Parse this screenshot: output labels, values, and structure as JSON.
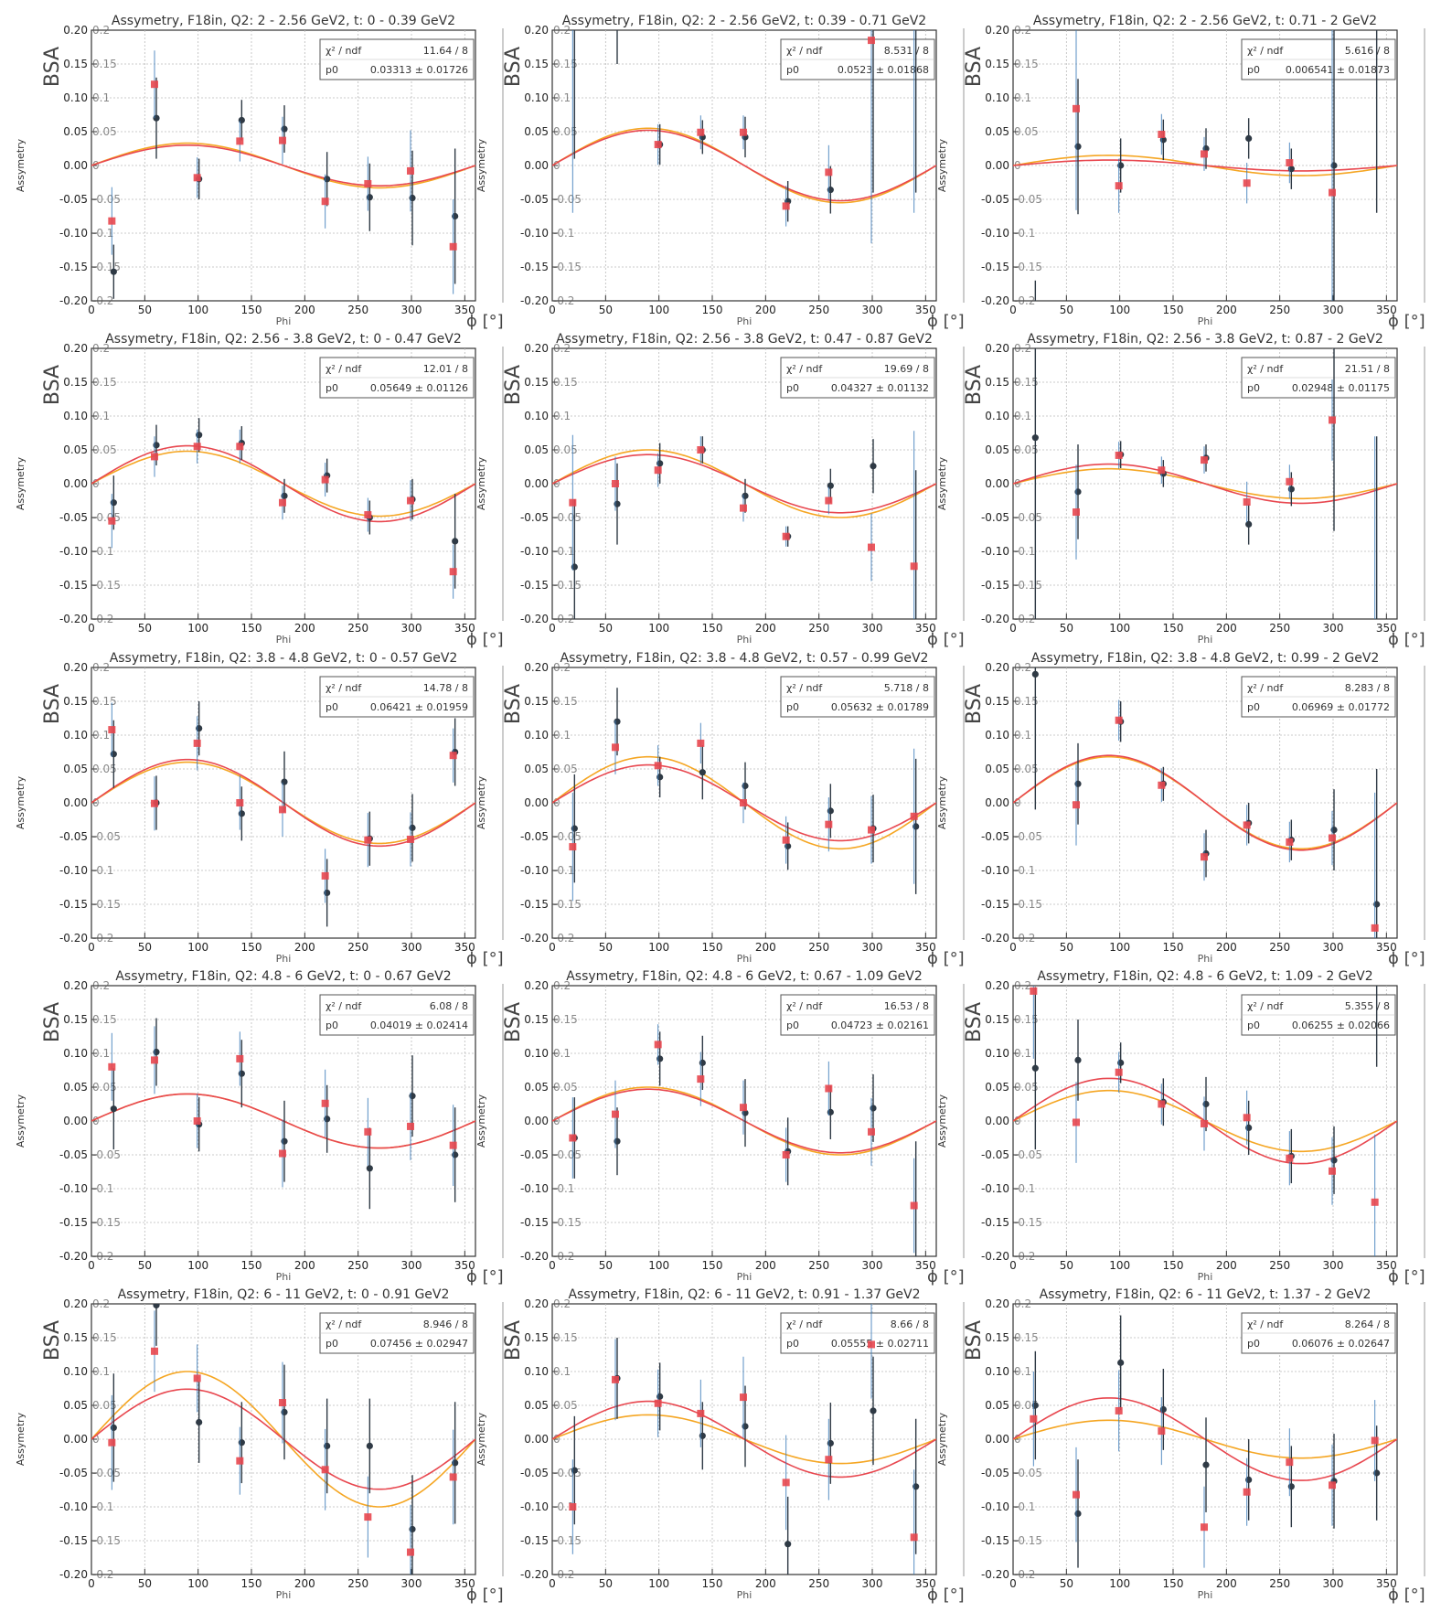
{
  "axis_common": {
    "xlabel": "Phi",
    "ylabel": "Assymetry",
    "overlay_ylabel": "BSA",
    "overlay_xlabel": "ϕ [°]",
    "xlim": [
      0,
      360
    ],
    "ylim": [
      -0.2,
      0.2
    ],
    "xticks": [
      "0",
      "50",
      "100",
      "150",
      "200",
      "250",
      "300",
      "350"
    ],
    "yticks": [
      "-0.20",
      "-0.15",
      "-0.10",
      "-0.05",
      "0.00",
      "0.05",
      "0.10",
      "0.15",
      "0.20"
    ],
    "yticks_overlay": [
      "-0.2",
      "-0.15",
      "-0.1",
      "-0.05",
      "0",
      "0.05",
      "0.1",
      "0.15",
      "0.2"
    ],
    "stats_label_chi": "χ² / ndf",
    "stats_label_p0": "p0",
    "colors": {
      "black_points": "#2f3a45",
      "red_points": "#e8474f",
      "fit_red": "#e8474f",
      "fit_orange": "#f5a623",
      "errbar_blue": "#3a7ab8",
      "grid": "#bbbbbb"
    }
  },
  "chart_data": [
    {
      "type": "scatter",
      "title": "Assymetry, F18in, Q2: 2 - 2.56 GeV2, t: 0 - 0.39 GeV2",
      "chi2": "11.64 / 8",
      "p0": "0.03313 ± 0.01726",
      "fit_amp_red": 0.03,
      "fit_amp_orange": 0.033,
      "x": [
        20,
        60,
        100,
        140,
        180,
        220,
        260,
        300,
        340
      ],
      "black": [
        -0.157,
        0.07,
        -0.02,
        0.067,
        0.054,
        -0.02,
        -0.047,
        -0.048,
        -0.075
      ],
      "black_err": [
        0.04,
        0.06,
        0.03,
        0.03,
        0.035,
        0.04,
        0.05,
        0.07,
        0.1
      ],
      "red": [
        -0.082,
        0.12,
        -0.018,
        0.036,
        0.037,
        -0.053,
        -0.027,
        -0.008,
        -0.12
      ],
      "red_err": [
        0.05,
        0.05,
        0.03,
        0.03,
        0.035,
        0.04,
        0.04,
        0.06,
        0.07
      ]
    },
    {
      "type": "scatter",
      "title": "Assymetry, F18in, Q2: 2 - 2.56 GeV2, t: 0.39 - 0.71 GeV2",
      "chi2": "8.531 / 8",
      "p0": "0.0523 ± 0.01868",
      "fit_amp_red": 0.052,
      "fit_amp_orange": 0.055,
      "x": [
        20,
        60,
        100,
        140,
        180,
        220,
        260,
        300,
        340
      ],
      "black": [
        0.21,
        0.21,
        0.031,
        0.042,
        0.042,
        -0.053,
        -0.036,
        0.21,
        0.21
      ],
      "black_err": [
        0.2,
        0.06,
        0.03,
        0.025,
        0.03,
        0.03,
        0.035,
        0.25,
        0.25
      ],
      "red": [
        0.23,
        0.23,
        0.031,
        0.049,
        0.049,
        -0.06,
        -0.01,
        0.185,
        0.23
      ],
      "red_err": [
        0.3,
        0.0,
        0.03,
        0.025,
        0.025,
        0.03,
        0.04,
        0.3,
        0.3
      ]
    },
    {
      "type": "scatter",
      "title": "Assymetry, F18in, Q2: 2 - 2.56 GeV2, t: 0.71 - 2 GeV2",
      "chi2": "5.616 / 8",
      "p0": "0.006541 ± 0.01873",
      "fit_amp_red": 0.008,
      "fit_amp_orange": 0.015,
      "x": [
        20,
        60,
        100,
        140,
        180,
        220,
        260,
        300,
        340
      ],
      "black": [
        -0.23,
        0.028,
        0.0,
        0.038,
        0.025,
        0.04,
        -0.005,
        0.0,
        0.23
      ],
      "black_err": [
        0.06,
        0.1,
        0.04,
        0.03,
        0.03,
        0.03,
        0.03,
        0.3,
        0.3
      ],
      "red": [
        -0.23,
        0.084,
        -0.03,
        0.046,
        0.017,
        -0.026,
        0.004,
        -0.04,
        -0.23
      ],
      "red_err": [
        0.0,
        0.15,
        0.04,
        0.03,
        0.025,
        0.03,
        0.03,
        0.3,
        0.0
      ]
    },
    {
      "type": "scatter",
      "title": "Assymetry, F18in, Q2: 2.56 - 3.8 GeV2, t: 0 - 0.47 GeV2",
      "chi2": "12.01 / 8",
      "p0": "0.05649 ± 0.01126",
      "fit_amp_red": 0.056,
      "fit_amp_orange": 0.048,
      "x": [
        20,
        60,
        100,
        140,
        180,
        220,
        260,
        300,
        340
      ],
      "black": [
        -0.028,
        0.057,
        0.072,
        0.06,
        -0.018,
        0.012,
        -0.05,
        -0.023,
        -0.085
      ],
      "black_err": [
        0.04,
        0.03,
        0.025,
        0.025,
        0.025,
        0.025,
        0.025,
        0.03,
        0.07
      ],
      "red": [
        -0.055,
        0.04,
        0.055,
        0.055,
        -0.028,
        0.006,
        -0.046,
        -0.025,
        -0.13
      ],
      "red_err": [
        0.04,
        0.03,
        0.025,
        0.025,
        0.025,
        0.025,
        0.025,
        0.03,
        0.04
      ]
    },
    {
      "type": "scatter",
      "title": "Assymetry, F18in, Q2: 2.56 - 3.8 GeV2, t: 0.47 - 0.87 GeV2",
      "chi2": "19.69 / 8",
      "p0": "0.04327 ± 0.01132",
      "fit_amp_red": 0.043,
      "fit_amp_orange": 0.05,
      "x": [
        20,
        60,
        100,
        140,
        180,
        220,
        260,
        300,
        340
      ],
      "black": [
        -0.123,
        -0.03,
        0.03,
        0.05,
        -0.018,
        -0.078,
        -0.003,
        0.026,
        -0.23
      ],
      "black_err": [
        0.1,
        0.06,
        0.03,
        0.02,
        0.025,
        0.015,
        0.025,
        0.04,
        0.25
      ],
      "red": [
        -0.028,
        0.0,
        0.02,
        0.05,
        -0.036,
        -0.078,
        -0.025,
        -0.094,
        -0.122
      ],
      "red_err": [
        0.1,
        0.04,
        0.025,
        0.02,
        0.02,
        0.015,
        0.02,
        0.05,
        0.2
      ]
    },
    {
      "type": "scatter",
      "title": "Assymetry, F18in, Q2: 2.56 - 3.8 GeV2, t: 0.87 - 2 GeV2",
      "chi2": "21.51 / 8",
      "p0": "0.02948 ± 0.01175",
      "fit_amp_red": 0.029,
      "fit_amp_orange": 0.022,
      "x": [
        20,
        60,
        100,
        140,
        180,
        220,
        260,
        300,
        340
      ],
      "black": [
        0.068,
        -0.012,
        0.043,
        0.015,
        0.038,
        -0.06,
        -0.008,
        0.23,
        -0.23
      ],
      "black_err": [
        0.3,
        0.07,
        0.02,
        0.02,
        0.02,
        0.03,
        0.025,
        0.3,
        0.3
      ],
      "red": [
        -0.23,
        -0.042,
        0.042,
        0.02,
        0.035,
        -0.027,
        0.003,
        0.094,
        -0.23
      ],
      "red_err": [
        0.0,
        0.07,
        0.02,
        0.02,
        0.02,
        0.03,
        0.025,
        0.06,
        0.3
      ]
    },
    {
      "type": "scatter",
      "title": "Assymetry, F18in, Q2: 3.8 - 4.8 GeV2, t: 0 - 0.57 GeV2",
      "chi2": "14.78 / 8",
      "p0": "0.06421 ± 0.01959",
      "fit_amp_red": 0.064,
      "fit_amp_orange": 0.06,
      "x": [
        20,
        60,
        100,
        140,
        180,
        220,
        260,
        300,
        340
      ],
      "black": [
        0.072,
        0.0,
        0.11,
        -0.016,
        0.031,
        -0.133,
        -0.053,
        -0.037,
        0.075
      ],
      "black_err": [
        0.05,
        0.04,
        0.04,
        0.04,
        0.045,
        0.05,
        0.04,
        0.05,
        0.05
      ],
      "red": [
        0.108,
        -0.001,
        0.088,
        0.0,
        -0.01,
        -0.108,
        -0.055,
        -0.054,
        0.07
      ],
      "red_err": [
        0.04,
        0.04,
        0.04,
        0.04,
        0.04,
        0.04,
        0.04,
        0.04,
        0.04
      ]
    },
    {
      "type": "scatter",
      "title": "Assymetry, F18in, Q2: 3.8 - 4.8 GeV2, t: 0.57 - 0.99 GeV2",
      "chi2": "5.718 / 8",
      "p0": "0.05632 ± 0.01789",
      "fit_amp_red": 0.056,
      "fit_amp_orange": 0.068,
      "x": [
        20,
        60,
        100,
        140,
        180,
        220,
        260,
        300,
        340
      ],
      "black": [
        -0.038,
        0.12,
        0.038,
        0.045,
        0.025,
        -0.064,
        -0.012,
        -0.038,
        -0.035
      ],
      "black_err": [
        0.08,
        0.05,
        0.03,
        0.04,
        0.035,
        0.035,
        0.04,
        0.05,
        0.1
      ],
      "red": [
        -0.065,
        0.082,
        0.055,
        0.088,
        0.0,
        -0.055,
        -0.032,
        -0.04,
        -0.02
      ],
      "red_err": [
        0.08,
        0.04,
        0.03,
        0.03,
        0.03,
        0.035,
        0.04,
        0.05,
        0.1
      ]
    },
    {
      "type": "scatter",
      "title": "Assymetry, F18in, Q2: 3.8 - 4.8 GeV2, t: 0.99 - 2 GeV2",
      "chi2": "8.283 / 8",
      "p0": "0.06969 ± 0.01772",
      "fit_amp_red": 0.07,
      "fit_amp_orange": 0.068,
      "x": [
        20,
        60,
        100,
        140,
        180,
        220,
        260,
        300,
        340
      ],
      "black": [
        0.19,
        0.028,
        0.12,
        0.028,
        -0.075,
        -0.03,
        -0.055,
        -0.04,
        -0.15
      ],
      "black_err": [
        0.2,
        0.06,
        0.03,
        0.025,
        0.035,
        0.03,
        0.03,
        0.06,
        0.2
      ],
      "red": [
        0.23,
        -0.003,
        0.122,
        0.026,
        -0.08,
        -0.033,
        -0.058,
        -0.052,
        -0.185
      ],
      "red_err": [
        0.0,
        0.06,
        0.03,
        0.025,
        0.035,
        0.03,
        0.03,
        0.04,
        0.2
      ]
    },
    {
      "type": "scatter",
      "title": "Assymetry, F18in, Q2: 4.8 - 6 GeV2, t: 0 - 0.67 GeV2",
      "chi2": "6.08 / 8",
      "p0": "0.04019 ± 0.02414",
      "fit_amp_red": 0.04,
      "fit_amp_orange": 0.04,
      "x": [
        20,
        60,
        100,
        140,
        180,
        220,
        260,
        300,
        340
      ],
      "black": [
        0.018,
        0.102,
        -0.005,
        0.07,
        -0.03,
        0.003,
        -0.07,
        0.037,
        -0.05
      ],
      "black_err": [
        0.06,
        0.05,
        0.04,
        0.05,
        0.06,
        0.05,
        0.06,
        0.06,
        0.07
      ],
      "red": [
        0.08,
        0.09,
        0.0,
        0.092,
        -0.048,
        0.026,
        -0.016,
        -0.008,
        -0.036
      ],
      "red_err": [
        0.05,
        0.05,
        0.04,
        0.04,
        0.05,
        0.05,
        0.05,
        0.05,
        0.06
      ]
    },
    {
      "type": "scatter",
      "title": "Assymetry, F18in, Q2: 4.8 - 6 GeV2, t: 0.67 - 1.09 GeV2",
      "chi2": "16.53 / 8",
      "p0": "0.04723 ± 0.02161",
      "fit_amp_red": 0.047,
      "fit_amp_orange": 0.05,
      "x": [
        20,
        60,
        100,
        140,
        180,
        220,
        260,
        300,
        340
      ],
      "black": [
        -0.025,
        -0.03,
        0.092,
        0.086,
        0.012,
        -0.045,
        0.013,
        0.019,
        -0.23
      ],
      "black_err": [
        0.06,
        0.05,
        0.04,
        0.04,
        0.05,
        0.05,
        0.04,
        0.05,
        0.2
      ],
      "red": [
        -0.025,
        0.01,
        0.113,
        0.062,
        0.02,
        -0.05,
        0.048,
        -0.016,
        -0.125
      ],
      "red_err": [
        0.06,
        0.05,
        0.03,
        0.04,
        0.04,
        0.04,
        0.04,
        0.05,
        0.07
      ]
    },
    {
      "type": "scatter",
      "title": "Assymetry, F18in, Q2: 4.8 - 6 GeV2, t: 1.09 - 2 GeV2",
      "chi2": "5.355 / 8",
      "p0": "0.06255 ± 0.02066",
      "fit_amp_red": 0.063,
      "fit_amp_orange": 0.045,
      "x": [
        20,
        60,
        100,
        140,
        180,
        220,
        260,
        300,
        340
      ],
      "black": [
        0.078,
        0.09,
        0.086,
        0.028,
        0.025,
        -0.01,
        -0.052,
        -0.058,
        0.23
      ],
      "black_err": [
        0.12,
        0.06,
        0.03,
        0.035,
        0.04,
        0.04,
        0.04,
        0.05,
        0.15
      ],
      "red": [
        0.192,
        -0.002,
        0.072,
        0.025,
        -0.004,
        0.005,
        -0.055,
        -0.074,
        -0.12
      ],
      "red_err": [
        0.1,
        0.06,
        0.03,
        0.03,
        0.04,
        0.04,
        0.04,
        0.05,
        0.1
      ]
    },
    {
      "type": "scatter",
      "title": "Assymetry, F18in, Q2: 6 - 11 GeV2, t: 0 - 0.91 GeV2",
      "chi2": "8.946 / 8",
      "p0": "0.07456 ± 0.02947",
      "fit_amp_red": 0.074,
      "fit_amp_orange": 0.1,
      "x": [
        20,
        60,
        100,
        140,
        180,
        220,
        260,
        300,
        340
      ],
      "black": [
        0.017,
        0.198,
        0.025,
        -0.005,
        0.04,
        -0.01,
        -0.01,
        -0.133,
        -0.035
      ],
      "black_err": [
        0.08,
        0.06,
        0.06,
        0.06,
        0.07,
        0.07,
        0.07,
        0.08,
        0.09
      ],
      "red": [
        -0.005,
        0.13,
        0.09,
        -0.032,
        0.054,
        -0.045,
        -0.115,
        -0.167,
        -0.056
      ],
      "red_err": [
        0.07,
        0.06,
        0.05,
        0.05,
        0.06,
        0.06,
        0.06,
        0.07,
        0.07
      ]
    },
    {
      "type": "scatter",
      "title": "Assymetry, F18in, Q2: 6 - 11 GeV2, t: 0.91 - 1.37 GeV2",
      "chi2": "8.66 / 8",
      "p0": "0.05555 ± 0.02711",
      "fit_amp_red": 0.056,
      "fit_amp_orange": 0.036,
      "x": [
        20,
        60,
        100,
        140,
        180,
        220,
        260,
        300,
        340
      ],
      "black": [
        -0.046,
        0.09,
        0.063,
        0.005,
        0.019,
        -0.155,
        -0.006,
        0.042,
        -0.07
      ],
      "black_err": [
        0.08,
        0.06,
        0.05,
        0.05,
        0.06,
        0.07,
        0.06,
        0.08,
        0.1
      ],
      "red": [
        -0.1,
        0.088,
        0.053,
        0.038,
        0.062,
        -0.064,
        -0.03,
        0.14,
        -0.145
      ],
      "red_err": [
        0.07,
        0.06,
        0.05,
        0.05,
        0.06,
        0.07,
        0.06,
        0.08,
        0.1
      ]
    },
    {
      "type": "scatter",
      "title": "Assymetry, F18in, Q2: 6 - 11 GeV2, t: 1.37 - 2 GeV2",
      "chi2": "8.264 / 8",
      "p0": "0.06076 ± 0.02647",
      "fit_amp_red": 0.061,
      "fit_amp_orange": 0.028,
      "x": [
        20,
        60,
        100,
        140,
        180,
        220,
        260,
        300,
        340
      ],
      "black": [
        0.05,
        -0.11,
        0.113,
        0.044,
        -0.038,
        -0.06,
        -0.07,
        -0.062,
        -0.05
      ],
      "black_err": [
        0.08,
        0.08,
        0.07,
        0.06,
        0.07,
        0.06,
        0.06,
        0.07,
        0.07
      ],
      "red": [
        0.03,
        -0.082,
        0.042,
        0.012,
        -0.13,
        -0.078,
        -0.034,
        -0.068,
        -0.002
      ],
      "red_err": [
        0.07,
        0.07,
        0.06,
        0.05,
        0.06,
        0.05,
        0.05,
        0.06,
        0.06
      ]
    }
  ]
}
